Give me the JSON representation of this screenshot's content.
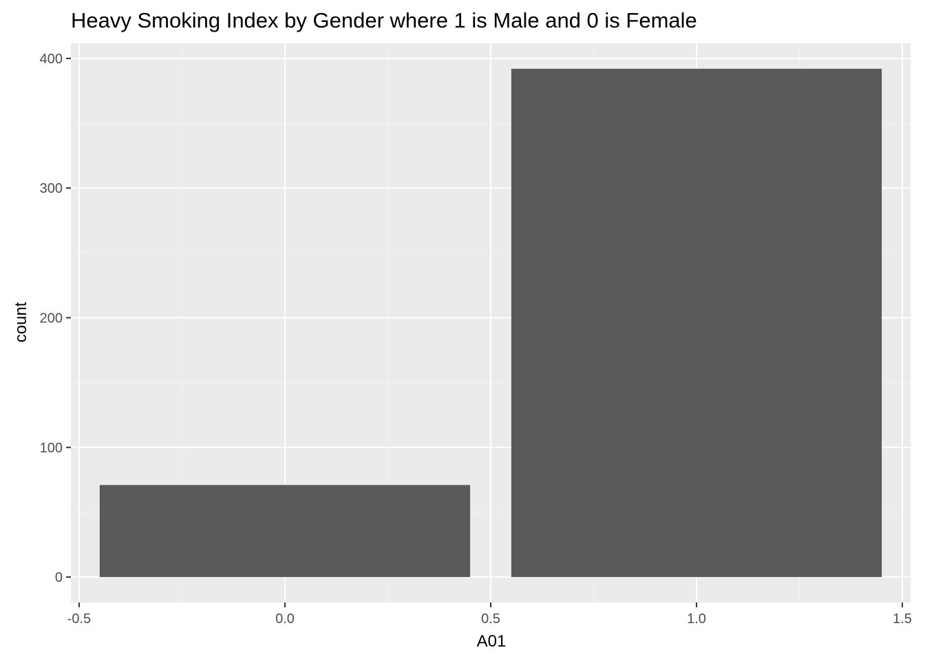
{
  "chart_data": {
    "type": "bar",
    "title": "Heavy Smoking Index by Gender where 1 is Male and 0 is Female",
    "xlabel": "A01",
    "ylabel": "count",
    "x": [
      0,
      1
    ],
    "values": [
      71,
      392
    ],
    "bar_width": 0.9,
    "xlim": [
      -0.52,
      1.52
    ],
    "ylim": [
      -19.6,
      411.6
    ],
    "x_ticks": [
      -0.5,
      0.0,
      0.5,
      1.0,
      1.5
    ],
    "x_tick_labels": [
      "-0.5",
      "0.0",
      "0.5",
      "1.0",
      "1.5"
    ],
    "x_minor_ticks": [
      -0.25,
      0.25,
      0.75,
      1.25
    ],
    "y_ticks": [
      0,
      100,
      200,
      300,
      400
    ],
    "y_tick_labels": [
      "0",
      "100",
      "200",
      "300",
      "400"
    ],
    "y_minor_ticks": [
      50,
      150,
      250,
      350
    ],
    "grid": true,
    "legend": "none",
    "colors": {
      "bar": "#595959",
      "panel": "#ebebeb",
      "grid_major": "#ffffff",
      "grid_minor": "#f5f5f5",
      "tick": "#333333"
    }
  }
}
